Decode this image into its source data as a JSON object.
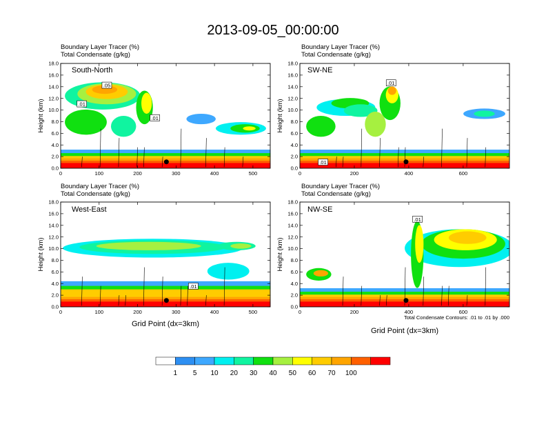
{
  "chart_data": {
    "type": "heatmap",
    "title": "2013-09-05_00:00:00",
    "fill_variable": "Boundary Layer Tracer",
    "fill_units": "(%)",
    "contour_variable": "Total Condensate",
    "contour_units": "(g/kg)",
    "contour_note": "Total Condensate Contours: .01 to .01 by .000",
    "xlabel": "Grid Point (dx=3km)",
    "ylabel": "Height (km)",
    "ylim": [
      0,
      18
    ],
    "yticks": [
      "0.0",
      "2.0",
      "4.0",
      "6.0",
      "8.0",
      "10.0",
      "12.0",
      "14.0",
      "16.0",
      "18.0"
    ],
    "colorbar": {
      "levels": [
        "1",
        "5",
        "10",
        "20",
        "30",
        "40",
        "50",
        "60",
        "70",
        "100"
      ],
      "colors": [
        "#ffffff",
        "#2d8ff2",
        "#3ea8ff",
        "#00f0f0",
        "#10f4a0",
        "#10e010",
        "#a6f040",
        "#ffff00",
        "#ffcc00",
        "#ffa500",
        "#ff6000",
        "#ff0000"
      ]
    },
    "panels": [
      {
        "id": "south-north",
        "label": "South-North",
        "line1": "Boundary Layer Tracer   (%)",
        "line2": "Total Condensate   (g/kg)",
        "xlim": [
          0,
          545
        ],
        "xticks": [
          0,
          100,
          200,
          300,
          400,
          500
        ],
        "contour_labels": [
          {
            "text": ".05",
            "x": 120,
            "y": 14.2
          },
          {
            "text": ".01",
            "x": 55,
            "y": 11.0
          },
          {
            "text": ".01",
            "x": 245,
            "y": 8.6
          }
        ],
        "marker": {
          "x": 275,
          "y": 1.1
        }
      },
      {
        "id": "sw-ne",
        "label": "SW-NE",
        "line1": "Boundary Layer Tracer   (%)",
        "line2": "Total Condensate   (g/kg)",
        "xlim": [
          0,
          770
        ],
        "xticks": [
          0,
          200,
          400,
          600
        ],
        "contour_labels": [
          {
            "text": ".01",
            "x": 335,
            "y": 14.6
          },
          {
            "text": ".01",
            "x": 85,
            "y": 1.0
          }
        ],
        "marker": {
          "x": 390,
          "y": 1.1
        }
      },
      {
        "id": "west-east",
        "label": "West-East",
        "line1": "Boundary Layer Tracer   (%)",
        "line2": "Total Condensate   (g/kg)",
        "xlim": [
          0,
          545
        ],
        "xticks": [
          0,
          100,
          200,
          300,
          400,
          500
        ],
        "contour_labels": [
          {
            "text": ".01",
            "x": 345,
            "y": 3.5
          }
        ],
        "marker": {
          "x": 275,
          "y": 1.1
        }
      },
      {
        "id": "nw-se",
        "label": "NW-SE",
        "line1": "Boundary Layer Tracer   (%)",
        "line2": "Total Condensate   (g/kg)",
        "xlim": [
          0,
          770
        ],
        "xticks": [
          0,
          200,
          400,
          600
        ],
        "contour_labels": [
          {
            "text": ".01",
            "x": 432,
            "y": 15.0
          }
        ],
        "marker": {
          "x": 390,
          "y": 1.1
        }
      }
    ]
  }
}
